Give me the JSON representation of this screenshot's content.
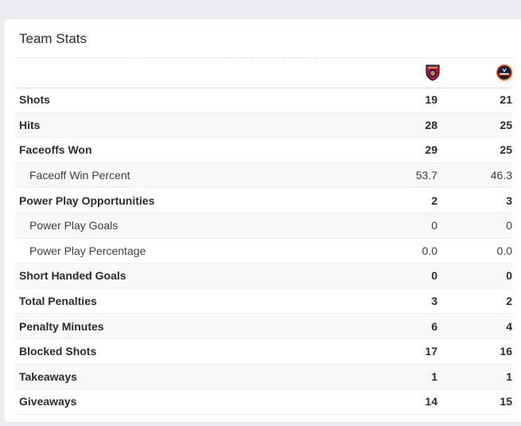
{
  "card": {
    "title": "Team Stats"
  },
  "teams": {
    "home": {
      "logo_icon": "florida-panthers-logo-icon",
      "primary": "#c8102e",
      "secondary": "#041e42",
      "accent": "#b9975b"
    },
    "away": {
      "logo_icon": "edmonton-oilers-logo-icon",
      "primary": "#041e42",
      "secondary": "#ff4c00"
    }
  },
  "stats": [
    {
      "label": "Shots",
      "home": "19",
      "away": "21",
      "sub": false
    },
    {
      "label": "Hits",
      "home": "28",
      "away": "25",
      "sub": false
    },
    {
      "label": "Faceoffs Won",
      "home": "29",
      "away": "25",
      "sub": false
    },
    {
      "label": "Faceoff Win Percent",
      "home": "53.7",
      "away": "46.3",
      "sub": true
    },
    {
      "label": "Power Play Opportunities",
      "home": "2",
      "away": "3",
      "sub": false
    },
    {
      "label": "Power Play Goals",
      "home": "0",
      "away": "0",
      "sub": true
    },
    {
      "label": "Power Play Percentage",
      "home": "0.0",
      "away": "0.0",
      "sub": true
    },
    {
      "label": "Short Handed Goals",
      "home": "0",
      "away": "0",
      "sub": false
    },
    {
      "label": "Total Penalties",
      "home": "3",
      "away": "2",
      "sub": false
    },
    {
      "label": "Penalty Minutes",
      "home": "6",
      "away": "4",
      "sub": false
    },
    {
      "label": "Blocked Shots",
      "home": "17",
      "away": "16",
      "sub": false
    },
    {
      "label": "Takeaways",
      "home": "1",
      "away": "1",
      "sub": false
    },
    {
      "label": "Giveaways",
      "home": "14",
      "away": "15",
      "sub": false
    }
  ]
}
